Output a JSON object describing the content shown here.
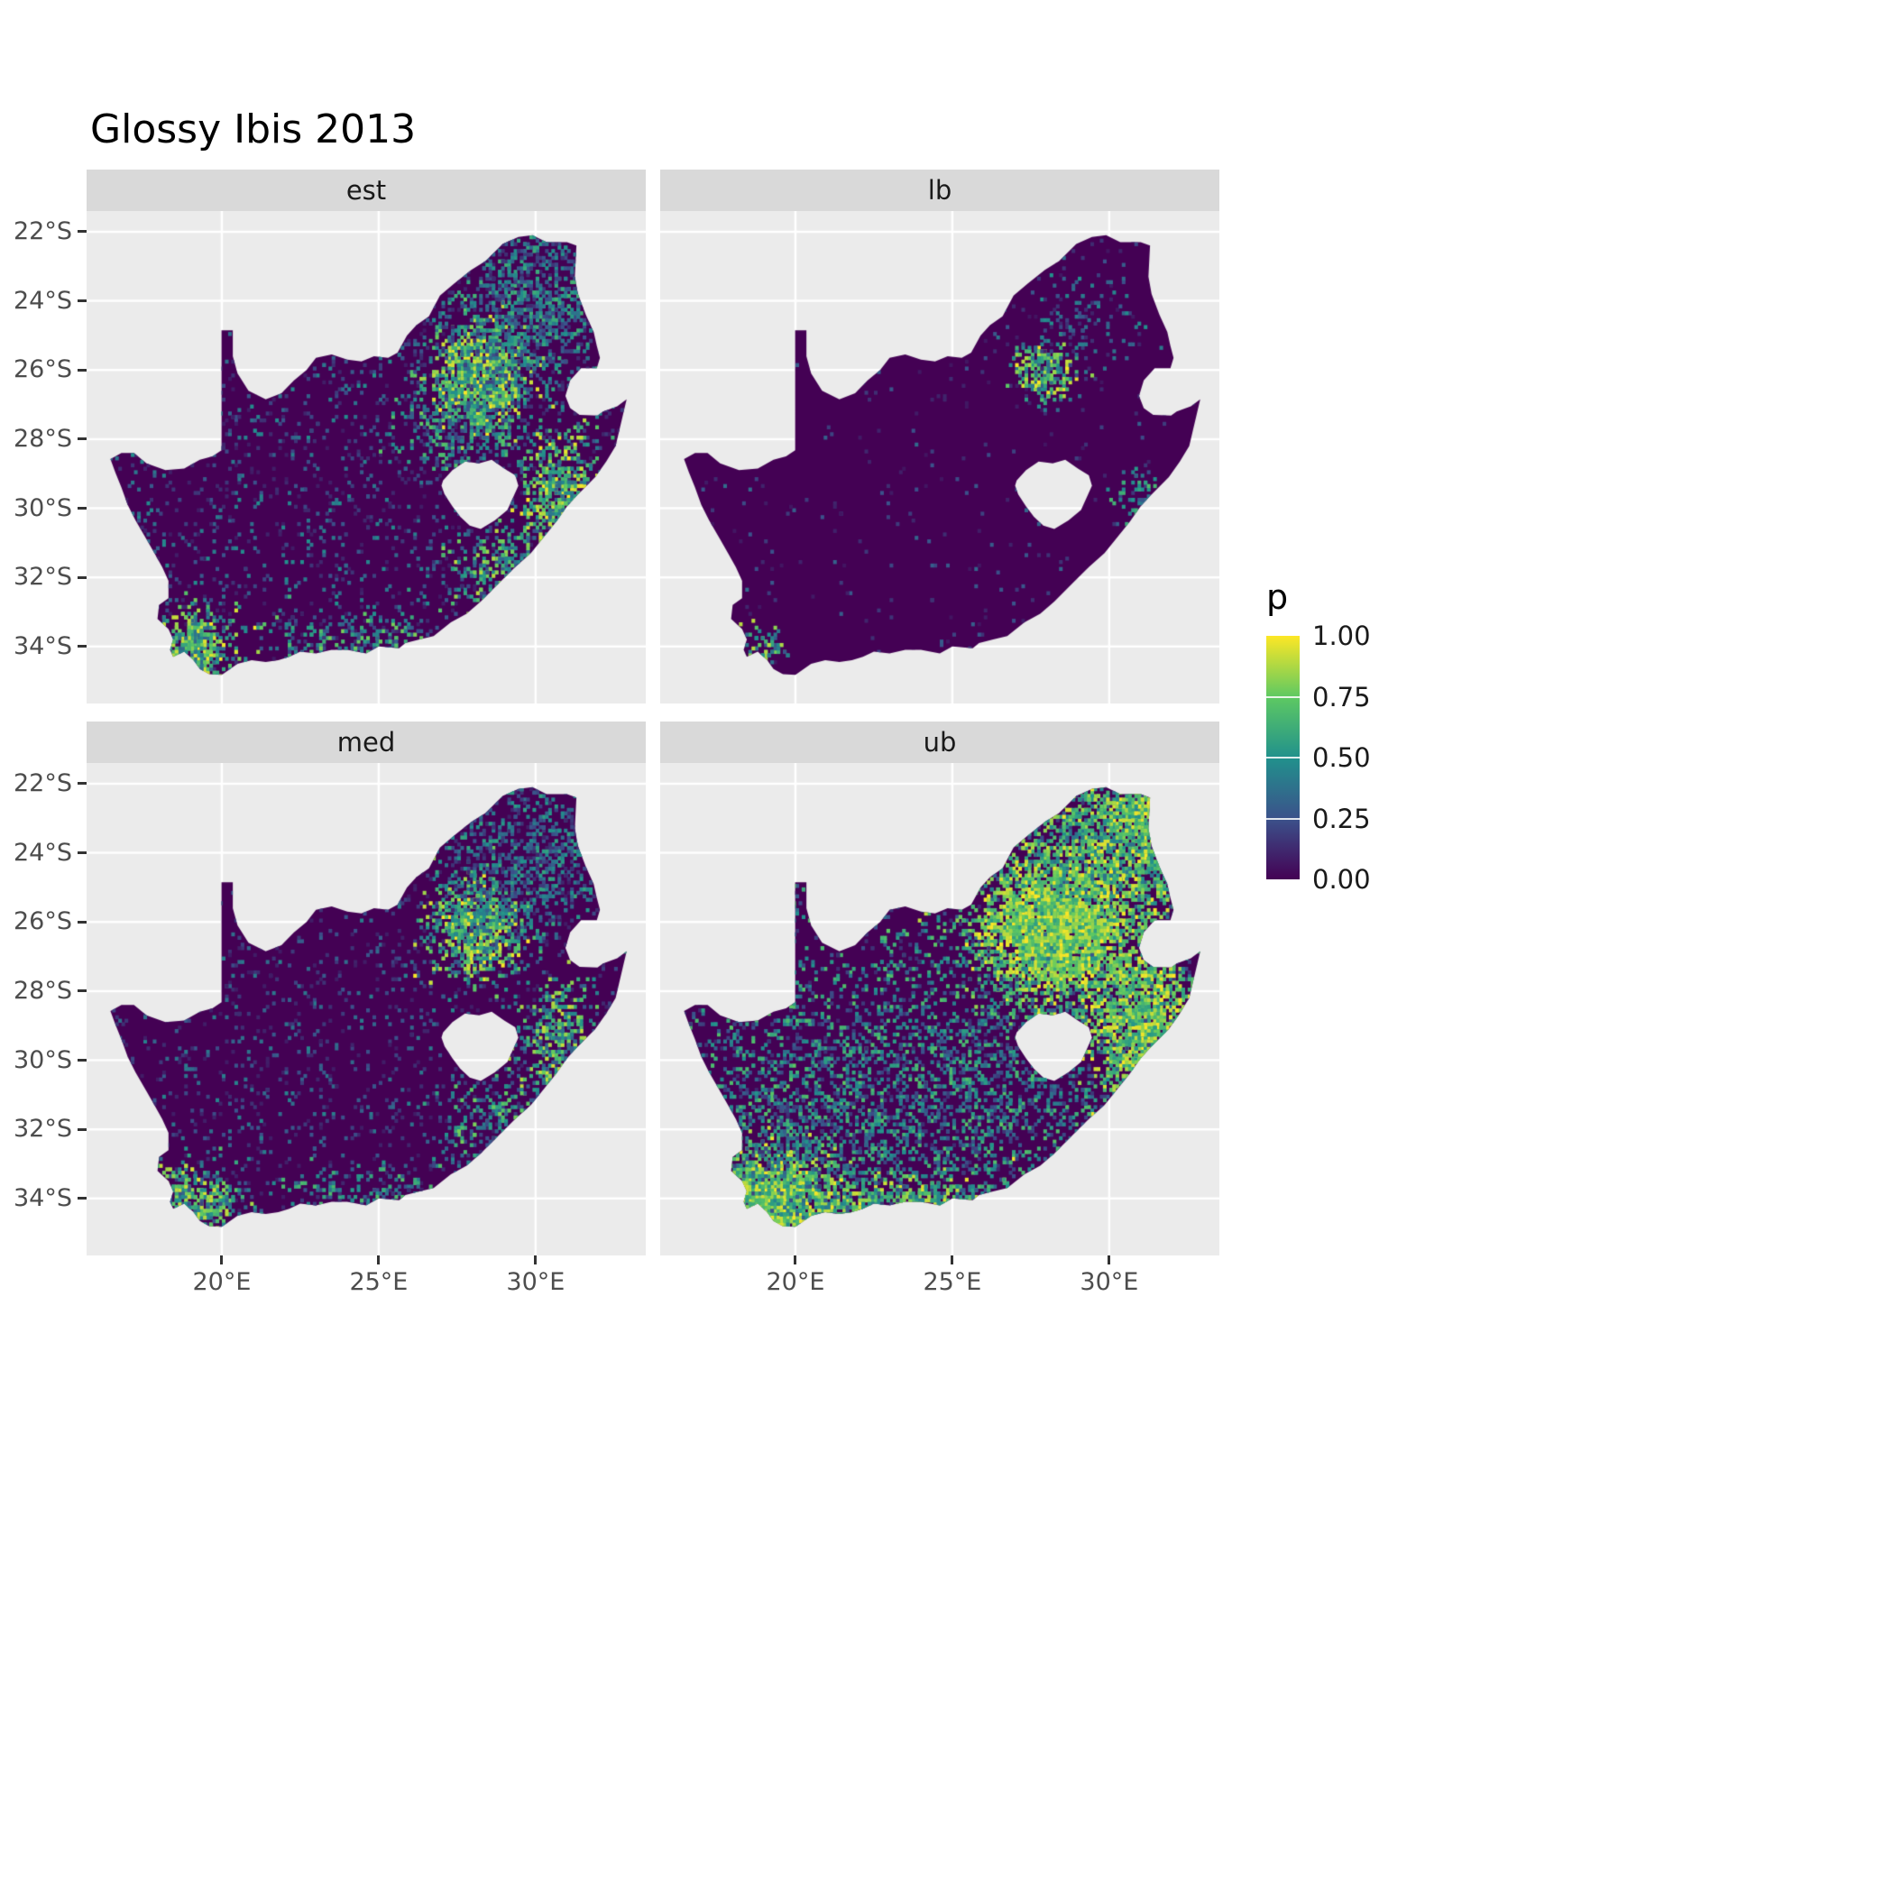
{
  "title": "Glossy Ibis 2013",
  "legend": {
    "title": "p",
    "ticks": [
      {
        "p": 1.0,
        "label": "1.00"
      },
      {
        "p": 0.75,
        "label": "0.75"
      },
      {
        "p": 0.5,
        "label": "0.50"
      },
      {
        "p": 0.25,
        "label": "0.25"
      },
      {
        "p": 0.0,
        "label": "0.00"
      }
    ]
  },
  "facets": [
    {
      "id": "est",
      "label": "est"
    },
    {
      "id": "lb",
      "label": "lb"
    },
    {
      "id": "med",
      "label": "med"
    },
    {
      "id": "ub",
      "label": "ub"
    }
  ],
  "axes": {
    "x": [
      {
        "v": 20,
        "label": "20°E"
      },
      {
        "v": 25,
        "label": "25°E"
      },
      {
        "v": 30,
        "label": "30°E"
      }
    ],
    "y": [
      {
        "v": 22,
        "label": "22°S"
      },
      {
        "v": 24,
        "label": "24°S"
      },
      {
        "v": 26,
        "label": "26°S"
      },
      {
        "v": 28,
        "label": "28°S"
      },
      {
        "v": 30,
        "label": "30°S"
      },
      {
        "v": 32,
        "label": "32°S"
      },
      {
        "v": 34,
        "label": "34°S"
      }
    ]
  },
  "colors": {
    "panel_bg": "#EBEBEB",
    "strip_bg": "#D9D9D9",
    "grid": "#FFFFFF",
    "map_base": "#440154",
    "axis_text": "#4D4D4D",
    "title_text": "#000000",
    "viridis": [
      "#440154",
      "#3B528B",
      "#21918C",
      "#5EC962",
      "#FDE725"
    ]
  },
  "chart_data": {
    "type": "heatmap",
    "title": "Glossy Ibis 2013",
    "subtitle": "",
    "variable": "p",
    "value_range": [
      0,
      1
    ],
    "legend_breaks": [
      0,
      0.25,
      0.5,
      0.75,
      1
    ],
    "legend_break_labels": [
      "0.00",
      "0.25",
      "0.50",
      "0.75",
      "1.00"
    ],
    "facets": [
      "est",
      "lb",
      "med",
      "ub"
    ],
    "region": "South Africa (with Lesotho hole)",
    "x_domain": [
      15.69,
      33.51
    ],
    "y_domain": [
      21.4,
      35.65
    ],
    "x_breaks": [
      20,
      25,
      30
    ],
    "y_breaks": [
      22,
      24,
      26,
      28,
      30,
      32,
      34
    ],
    "x_break_labels": [
      "20°E",
      "25°E",
      "30°E"
    ],
    "y_break_labels": [
      "22°S",
      "24°S",
      "26°S",
      "28°S",
      "30°S",
      "32°S",
      "34°S"
    ],
    "grid": true,
    "legend_position": "right",
    "colormap": "viridis",
    "viridis_stops": [
      {
        "t": 0.0,
        "hex": "#440154"
      },
      {
        "t": 0.25,
        "hex": "#3B528B"
      },
      {
        "t": 0.5,
        "hex": "#21918C"
      },
      {
        "t": 0.75,
        "hex": "#5EC962"
      },
      {
        "t": 1.0,
        "hex": "#FDE725"
      }
    ],
    "cell_size_deg": 0.1,
    "speckle_bbox": [
      16.2,
      33.3,
      22.0,
      35.1
    ],
    "map_outline": [
      [
        16.45,
        28.58
      ],
      [
        16.8,
        28.4
      ],
      [
        17.2,
        28.4
      ],
      [
        17.6,
        28.7
      ],
      [
        18.2,
        28.9
      ],
      [
        18.8,
        28.85
      ],
      [
        19.3,
        28.6
      ],
      [
        19.7,
        28.5
      ],
      [
        19.99,
        28.32
      ],
      [
        19.99,
        24.85
      ],
      [
        20.35,
        24.85
      ],
      [
        20.35,
        25.6
      ],
      [
        20.5,
        26.1
      ],
      [
        20.85,
        26.6
      ],
      [
        21.4,
        26.85
      ],
      [
        21.9,
        26.67
      ],
      [
        22.3,
        26.3
      ],
      [
        22.7,
        26.0
      ],
      [
        23.0,
        25.65
      ],
      [
        23.5,
        25.55
      ],
      [
        24.0,
        25.7
      ],
      [
        24.45,
        25.75
      ],
      [
        24.85,
        25.6
      ],
      [
        25.3,
        25.65
      ],
      [
        25.6,
        25.5
      ],
      [
        25.9,
        25.0
      ],
      [
        26.2,
        24.7
      ],
      [
        26.6,
        24.45
      ],
      [
        26.95,
        23.85
      ],
      [
        27.4,
        23.5
      ],
      [
        27.95,
        23.1
      ],
      [
        28.4,
        22.85
      ],
      [
        28.95,
        22.35
      ],
      [
        29.45,
        22.15
      ],
      [
        29.9,
        22.1
      ],
      [
        30.35,
        22.3
      ],
      [
        31.0,
        22.3
      ],
      [
        31.3,
        22.4
      ],
      [
        31.25,
        23.3
      ],
      [
        31.35,
        23.8
      ],
      [
        31.6,
        24.4
      ],
      [
        31.85,
        24.9
      ],
      [
        31.95,
        25.3
      ],
      [
        32.05,
        25.65
      ],
      [
        31.95,
        25.95
      ],
      [
        31.45,
        25.95
      ],
      [
        31.1,
        26.3
      ],
      [
        30.95,
        26.75
      ],
      [
        31.1,
        27.1
      ],
      [
        31.4,
        27.3
      ],
      [
        31.97,
        27.32
      ],
      [
        32.15,
        27.2
      ],
      [
        32.6,
        27.05
      ],
      [
        32.9,
        26.85
      ],
      [
        32.55,
        28.2
      ],
      [
        32.25,
        28.65
      ],
      [
        31.9,
        29.1
      ],
      [
        31.3,
        29.65
      ],
      [
        31.0,
        29.95
      ],
      [
        30.65,
        30.4
      ],
      [
        30.25,
        30.85
      ],
      [
        29.85,
        31.3
      ],
      [
        29.35,
        31.7
      ],
      [
        28.8,
        32.2
      ],
      [
        28.25,
        32.7
      ],
      [
        27.8,
        33.05
      ],
      [
        27.3,
        33.3
      ],
      [
        26.75,
        33.7
      ],
      [
        26.3,
        33.8
      ],
      [
        25.85,
        33.9
      ],
      [
        25.65,
        34.05
      ],
      [
        25.0,
        34.0
      ],
      [
        24.6,
        34.2
      ],
      [
        24.0,
        34.1
      ],
      [
        23.5,
        34.1
      ],
      [
        23.0,
        34.2
      ],
      [
        22.5,
        34.15
      ],
      [
        22.15,
        34.3
      ],
      [
        21.8,
        34.4
      ],
      [
        21.4,
        34.45
      ],
      [
        20.95,
        34.4
      ],
      [
        20.5,
        34.5
      ],
      [
        20.0,
        34.82
      ],
      [
        19.6,
        34.8
      ],
      [
        19.3,
        34.65
      ],
      [
        19.1,
        34.4
      ],
      [
        18.8,
        34.15
      ],
      [
        18.45,
        34.3
      ],
      [
        18.35,
        34.1
      ],
      [
        18.45,
        33.8
      ],
      [
        18.3,
        33.5
      ],
      [
        17.95,
        33.2
      ],
      [
        18.0,
        32.8
      ],
      [
        18.3,
        32.6
      ],
      [
        18.3,
        32.1
      ],
      [
        18.1,
        31.7
      ],
      [
        17.85,
        31.3
      ],
      [
        17.6,
        30.9
      ],
      [
        17.25,
        30.35
      ],
      [
        17.0,
        29.9
      ],
      [
        16.8,
        29.4
      ],
      [
        16.6,
        28.95
      ]
    ],
    "lesotho_hole": [
      [
        27.05,
        29.2
      ],
      [
        27.35,
        28.9
      ],
      [
        27.75,
        28.65
      ],
      [
        28.2,
        28.7
      ],
      [
        28.6,
        28.6
      ],
      [
        29.0,
        28.85
      ],
      [
        29.35,
        29.05
      ],
      [
        29.45,
        29.35
      ],
      [
        29.25,
        29.75
      ],
      [
        29.1,
        30.05
      ],
      [
        28.7,
        30.35
      ],
      [
        28.25,
        30.6
      ],
      [
        27.9,
        30.5
      ],
      [
        27.6,
        30.25
      ],
      [
        27.35,
        29.95
      ],
      [
        27.1,
        29.6
      ],
      [
        27.0,
        29.35
      ]
    ],
    "speckles": {
      "est": {
        "seed": 101,
        "base": {
          "n": 2600,
          "v": [
            0.08,
            0.5
          ],
          "bias": 1.6
        },
        "hotspots": [
          {
            "lon": 28.1,
            "lat": 26.1,
            "sx": 0.7,
            "sy": 0.7,
            "n": 1000,
            "v": [
              0.35,
              1.0
            ]
          },
          {
            "lon": 29.9,
            "lat": 24.2,
            "sx": 1.5,
            "sy": 1.2,
            "n": 1000,
            "v": [
              0.12,
              0.65
            ]
          },
          {
            "lon": 30.7,
            "lat": 29.5,
            "sx": 0.6,
            "sy": 0.9,
            "n": 520,
            "v": [
              0.3,
              1.0
            ]
          },
          {
            "lon": 19.0,
            "lat": 34.0,
            "sx": 0.7,
            "sy": 0.5,
            "n": 480,
            "v": [
              0.3,
              1.0
            ]
          },
          {
            "lon": 24.8,
            "lat": 33.8,
            "sx": 1.8,
            "sy": 0.45,
            "n": 260,
            "v": [
              0.15,
              0.8
            ]
          },
          {
            "lon": 28.8,
            "lat": 31.8,
            "sx": 0.9,
            "sy": 0.7,
            "n": 280,
            "v": [
              0.2,
              0.9
            ]
          },
          {
            "lon": 27.8,
            "lat": 27.6,
            "sx": 1.2,
            "sy": 0.7,
            "n": 350,
            "v": [
              0.15,
              0.75
            ]
          }
        ]
      },
      "lb": {
        "seed": 202,
        "base": {
          "n": 420,
          "v": [
            0.06,
            0.35
          ],
          "bias": 1.5
        },
        "hotspots": [
          {
            "lon": 27.9,
            "lat": 26.0,
            "sx": 0.45,
            "sy": 0.45,
            "n": 230,
            "v": [
              0.3,
              1.0
            ]
          },
          {
            "lon": 29.0,
            "lat": 24.6,
            "sx": 0.9,
            "sy": 0.7,
            "n": 120,
            "v": [
              0.1,
              0.5
            ]
          },
          {
            "lon": 19.0,
            "lat": 34.0,
            "sx": 0.35,
            "sy": 0.3,
            "n": 70,
            "v": [
              0.25,
              0.9
            ]
          },
          {
            "lon": 30.8,
            "lat": 29.6,
            "sx": 0.4,
            "sy": 0.5,
            "n": 60,
            "v": [
              0.15,
              0.7
            ]
          }
        ]
      },
      "med": {
        "seed": 303,
        "base": {
          "n": 2100,
          "v": [
            0.08,
            0.45
          ],
          "bias": 1.6
        },
        "hotspots": [
          {
            "lon": 28.1,
            "lat": 26.1,
            "sx": 0.7,
            "sy": 0.7,
            "n": 800,
            "v": [
              0.3,
              1.0
            ]
          },
          {
            "lon": 29.9,
            "lat": 24.2,
            "sx": 1.5,
            "sy": 1.2,
            "n": 800,
            "v": [
              0.1,
              0.6
            ]
          },
          {
            "lon": 30.7,
            "lat": 29.5,
            "sx": 0.6,
            "sy": 0.9,
            "n": 420,
            "v": [
              0.25,
              0.95
            ]
          },
          {
            "lon": 19.0,
            "lat": 34.0,
            "sx": 0.7,
            "sy": 0.5,
            "n": 400,
            "v": [
              0.25,
              0.95
            ]
          },
          {
            "lon": 24.8,
            "lat": 33.8,
            "sx": 1.8,
            "sy": 0.45,
            "n": 220,
            "v": [
              0.12,
              0.7
            ]
          },
          {
            "lon": 28.8,
            "lat": 31.8,
            "sx": 0.9,
            "sy": 0.7,
            "n": 220,
            "v": [
              0.15,
              0.8
            ]
          }
        ]
      },
      "ub": {
        "seed": 404,
        "base": {
          "n": 4200,
          "v": [
            0.12,
            0.75
          ],
          "bias": 1.2
        },
        "hotspots": [
          {
            "lon": 28.2,
            "lat": 26.2,
            "sx": 1.1,
            "sy": 0.95,
            "n": 3000,
            "v": [
              0.55,
              1.0
            ]
          },
          {
            "lon": 30.3,
            "lat": 23.7,
            "sx": 1.5,
            "sy": 1.1,
            "n": 1700,
            "v": [
              0.35,
              1.0
            ]
          },
          {
            "lon": 31.6,
            "lat": 22.9,
            "sx": 0.8,
            "sy": 0.6,
            "n": 500,
            "v": [
              0.45,
              1.0
            ]
          },
          {
            "lon": 31.0,
            "lat": 28.9,
            "sx": 0.8,
            "sy": 1.1,
            "n": 1300,
            "v": [
              0.5,
              1.0
            ]
          },
          {
            "lon": 19.2,
            "lat": 33.9,
            "sx": 0.9,
            "sy": 0.7,
            "n": 1200,
            "v": [
              0.5,
              1.0
            ]
          },
          {
            "lon": 23.5,
            "lat": 34.2,
            "sx": 2.6,
            "sy": 0.45,
            "n": 900,
            "v": [
              0.4,
              1.0
            ]
          },
          {
            "lon": 20.6,
            "lat": 31.8,
            "sx": 2.2,
            "sy": 1.6,
            "n": 900,
            "v": [
              0.15,
              0.7
            ]
          },
          {
            "lon": 26.5,
            "lat": 30.5,
            "sx": 2.5,
            "sy": 2.0,
            "n": 900,
            "v": [
              0.15,
              0.7
            ]
          }
        ]
      }
    }
  }
}
